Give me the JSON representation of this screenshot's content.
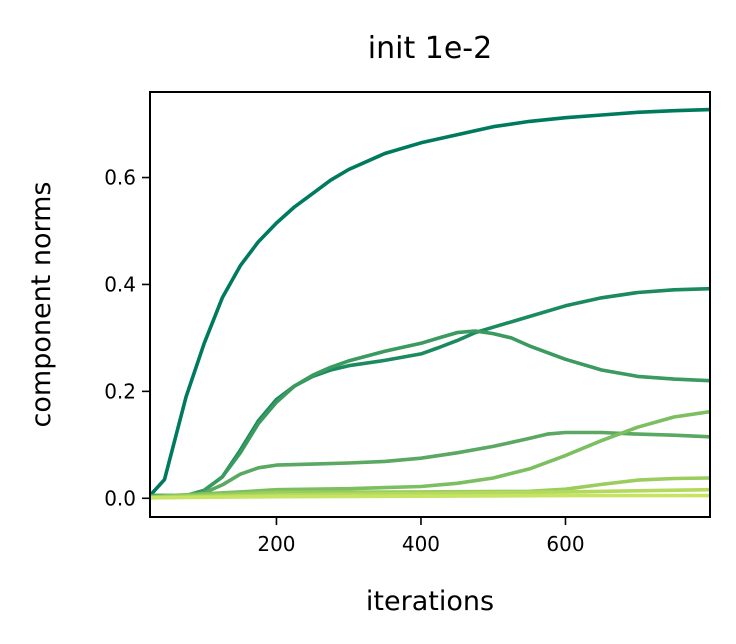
{
  "chart_data": {
    "type": "line",
    "title": "init 1e-2",
    "xlabel": "iterations",
    "ylabel": "component norms",
    "xlim": [
      25,
      800
    ],
    "ylim": [
      -0.035,
      0.76
    ],
    "xticks": [
      200,
      400,
      600
    ],
    "yticks": [
      0.0,
      0.2,
      0.4,
      0.6
    ],
    "xtick_labels": [
      "200",
      "400",
      "600"
    ],
    "ytick_labels": [
      "0.0",
      "0.2",
      "0.4",
      "0.6"
    ],
    "grid": false,
    "legend": "none",
    "series": [
      {
        "color": "#007a5e",
        "x": [
          25,
          45,
          75,
          100,
          125,
          150,
          175,
          200,
          225,
          250,
          275,
          300,
          350,
          400,
          450,
          500,
          550,
          600,
          650,
          700,
          750,
          800
        ],
        "y": [
          0.005,
          0.035,
          0.19,
          0.29,
          0.375,
          0.435,
          0.48,
          0.515,
          0.545,
          0.57,
          0.595,
          0.615,
          0.645,
          0.665,
          0.68,
          0.695,
          0.705,
          0.712,
          0.717,
          0.722,
          0.725,
          0.727
        ]
      },
      {
        "color": "#1b8a5f",
        "x": [
          25,
          75,
          100,
          125,
          150,
          175,
          200,
          225,
          250,
          275,
          300,
          350,
          400,
          425,
          450,
          475,
          500,
          550,
          600,
          650,
          700,
          750,
          800
        ],
        "y": [
          0.005,
          0.005,
          0.015,
          0.04,
          0.09,
          0.145,
          0.185,
          0.21,
          0.228,
          0.24,
          0.248,
          0.258,
          0.27,
          0.282,
          0.295,
          0.31,
          0.32,
          0.34,
          0.36,
          0.375,
          0.385,
          0.39,
          0.392
        ]
      },
      {
        "color": "#3b9a60",
        "x": [
          25,
          75,
          100,
          125,
          150,
          175,
          200,
          225,
          250,
          275,
          300,
          350,
          400,
          425,
          450,
          475,
          500,
          525,
          550,
          600,
          650,
          700,
          750,
          800
        ],
        "y": [
          0.005,
          0.005,
          0.015,
          0.04,
          0.085,
          0.14,
          0.18,
          0.21,
          0.23,
          0.245,
          0.257,
          0.275,
          0.29,
          0.3,
          0.31,
          0.313,
          0.308,
          0.3,
          0.285,
          0.26,
          0.24,
          0.228,
          0.223,
          0.22
        ]
      },
      {
        "color": "#5aa862",
        "x": [
          25,
          75,
          100,
          125,
          150,
          175,
          200,
          250,
          300,
          350,
          400,
          450,
          500,
          550,
          575,
          600,
          650,
          700,
          750,
          800
        ],
        "y": [
          0.003,
          0.003,
          0.01,
          0.025,
          0.045,
          0.057,
          0.062,
          0.064,
          0.066,
          0.069,
          0.075,
          0.085,
          0.097,
          0.112,
          0.12,
          0.123,
          0.123,
          0.12,
          0.118,
          0.115
        ]
      },
      {
        "color": "#7bbf60",
        "x": [
          25,
          150,
          200,
          300,
          400,
          450,
          500,
          550,
          600,
          650,
          700,
          750,
          800
        ],
        "y": [
          0.003,
          0.012,
          0.016,
          0.018,
          0.022,
          0.028,
          0.038,
          0.055,
          0.08,
          0.108,
          0.133,
          0.152,
          0.162
        ]
      },
      {
        "color": "#9acd5e",
        "x": [
          25,
          150,
          200,
          400,
          550,
          600,
          650,
          700,
          750,
          800
        ],
        "y": [
          0.002,
          0.008,
          0.011,
          0.012,
          0.013,
          0.017,
          0.026,
          0.034,
          0.037,
          0.038
        ]
      },
      {
        "color": "#b3da5e",
        "x": [
          25,
          200,
          400,
          600,
          800
        ],
        "y": [
          0.001,
          0.006,
          0.009,
          0.012,
          0.016
        ]
      },
      {
        "color": "#c6e361",
        "x": [
          25,
          200,
          400,
          600,
          800
        ],
        "y": [
          0.001,
          0.003,
          0.004,
          0.005,
          0.005
        ]
      }
    ]
  }
}
